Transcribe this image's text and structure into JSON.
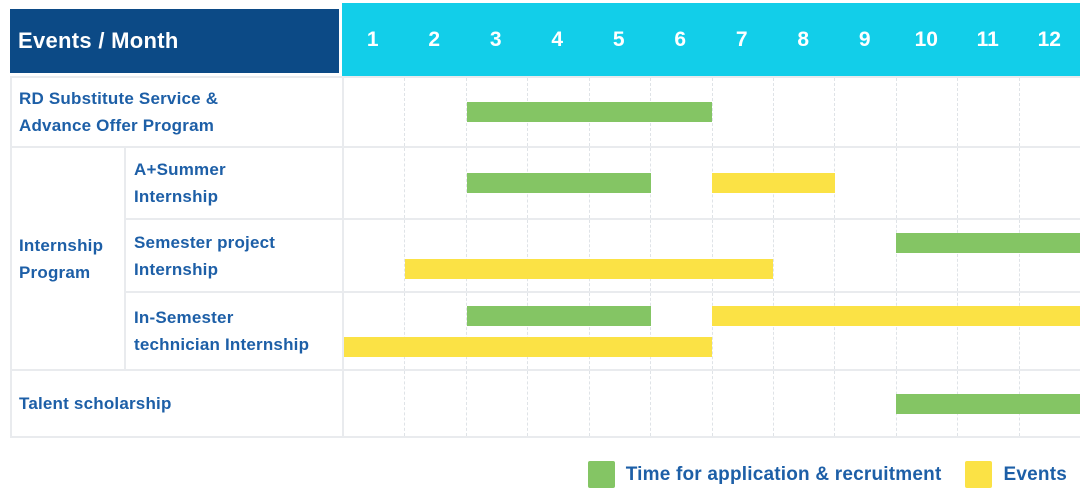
{
  "header": {
    "title": "Events / Month",
    "months": [
      "1",
      "2",
      "3",
      "4",
      "5",
      "6",
      "7",
      "8",
      "9",
      "10",
      "11",
      "12"
    ]
  },
  "groups": [
    {
      "id": "internship",
      "label_lines": [
        "Internship",
        "Program"
      ]
    }
  ],
  "rows": [
    {
      "id": "rd-substitute-service",
      "group": null,
      "label_lines": [
        "RD Substitute Service &",
        "Advance Offer Program"
      ],
      "bars": [
        {
          "series": "green",
          "start": 3,
          "end": 6,
          "track": "mid"
        }
      ]
    },
    {
      "id": "a-plus-summer-internship",
      "group": "internship",
      "label_lines": [
        "A+Summer",
        "Internship"
      ],
      "bars": [
        {
          "series": "green",
          "start": 3,
          "end": 5,
          "track": "mid"
        },
        {
          "series": "yellow",
          "start": 7,
          "end": 8,
          "track": "mid"
        }
      ]
    },
    {
      "id": "semester-project-internship",
      "group": "internship",
      "label_lines": [
        "Semester project",
        "Internship"
      ],
      "bars": [
        {
          "series": "green",
          "start": 10,
          "end": 12,
          "track": "top"
        },
        {
          "series": "yellow",
          "start": 2,
          "end": 7,
          "track": "bottom"
        }
      ]
    },
    {
      "id": "in-semester-technician-internship",
      "group": "internship",
      "label_lines": [
        "In-Semester",
        "technician Internship"
      ],
      "bars": [
        {
          "series": "green",
          "start": 3,
          "end": 5,
          "track": "top"
        },
        {
          "series": "yellow",
          "start": 7,
          "end": 12,
          "track": "top"
        },
        {
          "series": "yellow",
          "start": 1,
          "end": 6,
          "track": "bottom"
        }
      ]
    },
    {
      "id": "talent-scholarship",
      "group": null,
      "label_lines": [
        "Talent scholarship"
      ],
      "bars": [
        {
          "series": "green",
          "start": 10,
          "end": 12,
          "track": "mid"
        }
      ]
    }
  ],
  "legend": [
    {
      "series": "green",
      "label": "Time for application & recruitment",
      "color": "#84C564"
    },
    {
      "series": "yellow",
      "label": "Events",
      "color": "#FBE245"
    }
  ],
  "colors": {
    "navy": "#0C4A86",
    "cyan": "#12CEE9",
    "green": "#84C564",
    "yellow": "#FBE245",
    "blue": "#1D5FA7"
  },
  "chart_data": {
    "type": "bar",
    "subtype": "gantt-schedule",
    "title": "Events / Month",
    "xlabel": "Month",
    "x_ticks": [
      1,
      2,
      3,
      4,
      5,
      6,
      7,
      8,
      9,
      10,
      11,
      12
    ],
    "x_range": [
      1,
      12
    ],
    "grid": true,
    "legend_position": "bottom-right",
    "series_legend": [
      {
        "name": "Time for application & recruitment",
        "color": "#84C564"
      },
      {
        "name": "Events",
        "color": "#FBE245"
      }
    ],
    "rows": [
      {
        "event": "RD Substitute Service & Advance Offer Program",
        "group": null,
        "bars": [
          {
            "series": "Time for application & recruitment",
            "start_month": 3,
            "end_month": 6
          }
        ]
      },
      {
        "event": "A+Summer Internship",
        "group": "Internship Program",
        "bars": [
          {
            "series": "Time for application & recruitment",
            "start_month": 3,
            "end_month": 5
          },
          {
            "series": "Events",
            "start_month": 7,
            "end_month": 8
          }
        ]
      },
      {
        "event": "Semester project Internship",
        "group": "Internship Program",
        "bars": [
          {
            "series": "Time for application & recruitment",
            "start_month": 10,
            "end_month": 12
          },
          {
            "series": "Events",
            "start_month": 2,
            "end_month": 7
          }
        ]
      },
      {
        "event": "In-Semester technician Internship",
        "group": "Internship Program",
        "bars": [
          {
            "series": "Time for application & recruitment",
            "start_month": 3,
            "end_month": 5
          },
          {
            "series": "Events",
            "start_month": 7,
            "end_month": 12
          },
          {
            "series": "Events",
            "start_month": 1,
            "end_month": 6
          }
        ]
      },
      {
        "event": "Talent scholarship",
        "group": null,
        "bars": [
          {
            "series": "Time for application & recruitment",
            "start_month": 10,
            "end_month": 12
          }
        ]
      }
    ]
  }
}
